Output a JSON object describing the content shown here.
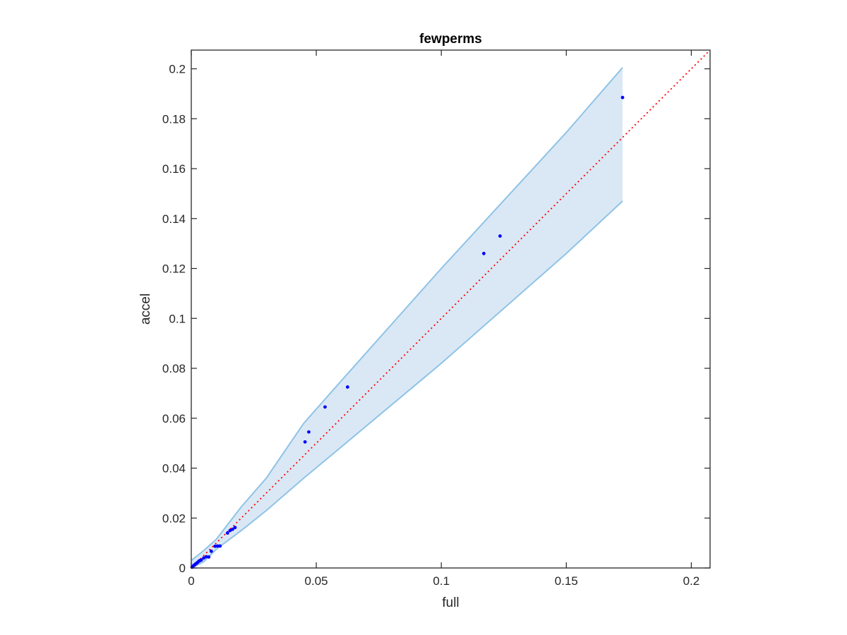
{
  "chart_data": {
    "type": "scatter",
    "title": "fewperms",
    "xlabel": "full",
    "ylabel": "accel",
    "xlim": [
      0,
      0.2075
    ],
    "ylim": [
      0,
      0.2075
    ],
    "xticks": [
      0,
      0.05,
      0.1,
      0.15,
      0.2
    ],
    "xtick_labels": [
      "0",
      "0.05",
      "0.1",
      "0.15",
      "0.2"
    ],
    "yticks": [
      0,
      0.02,
      0.04,
      0.06,
      0.08,
      0.1,
      0.12,
      0.14,
      0.16,
      0.18,
      0.2
    ],
    "ytick_labels": [
      "0",
      "0.02",
      "0.04",
      "0.06",
      "0.08",
      "0.1",
      "0.12",
      "0.14",
      "0.16",
      "0.18",
      "0.2"
    ],
    "grid": false,
    "series": [
      {
        "kind": "points",
        "color": "#0000ff",
        "x": [
          0.0003,
          0.0006,
          0.001,
          0.0013,
          0.0016,
          0.002,
          0.0025,
          0.003,
          0.0035,
          0.004,
          0.005,
          0.006,
          0.007,
          0.008,
          0.0095,
          0.0105,
          0.0115,
          0.0145,
          0.0155,
          0.0165,
          0.0175,
          0.0455,
          0.047,
          0.0535,
          0.0625,
          0.117,
          0.1235,
          0.1725
        ],
        "y": [
          0.0003,
          0.0006,
          0.001,
          0.0012,
          0.0015,
          0.0018,
          0.0022,
          0.0027,
          0.003,
          0.0032,
          0.004,
          0.0045,
          0.0044,
          0.0067,
          0.0087,
          0.0088,
          0.0088,
          0.014,
          0.015,
          0.0155,
          0.0162,
          0.0505,
          0.0545,
          0.0645,
          0.0725,
          0.126,
          0.133,
          0.1885
        ]
      },
      {
        "kind": "reference-line",
        "style": "dotted",
        "color": "#ff0000",
        "x": [
          0,
          0.2075
        ],
        "y": [
          0,
          0.2075
        ]
      },
      {
        "kind": "band",
        "fill_color": "#dae8f5",
        "edge_color": "#8ec3e6",
        "x": [
          0,
          0.005,
          0.01,
          0.02,
          0.03,
          0.045,
          0.06,
          0.1,
          0.15,
          0.1725
        ],
        "upper": [
          0.003,
          0.007,
          0.0115,
          0.0245,
          0.036,
          0.058,
          0.075,
          0.12,
          0.1745,
          0.2005
        ],
        "lower": [
          0,
          0.0025,
          0.0075,
          0.015,
          0.023,
          0.036,
          0.0485,
          0.082,
          0.126,
          0.147
        ]
      }
    ]
  }
}
